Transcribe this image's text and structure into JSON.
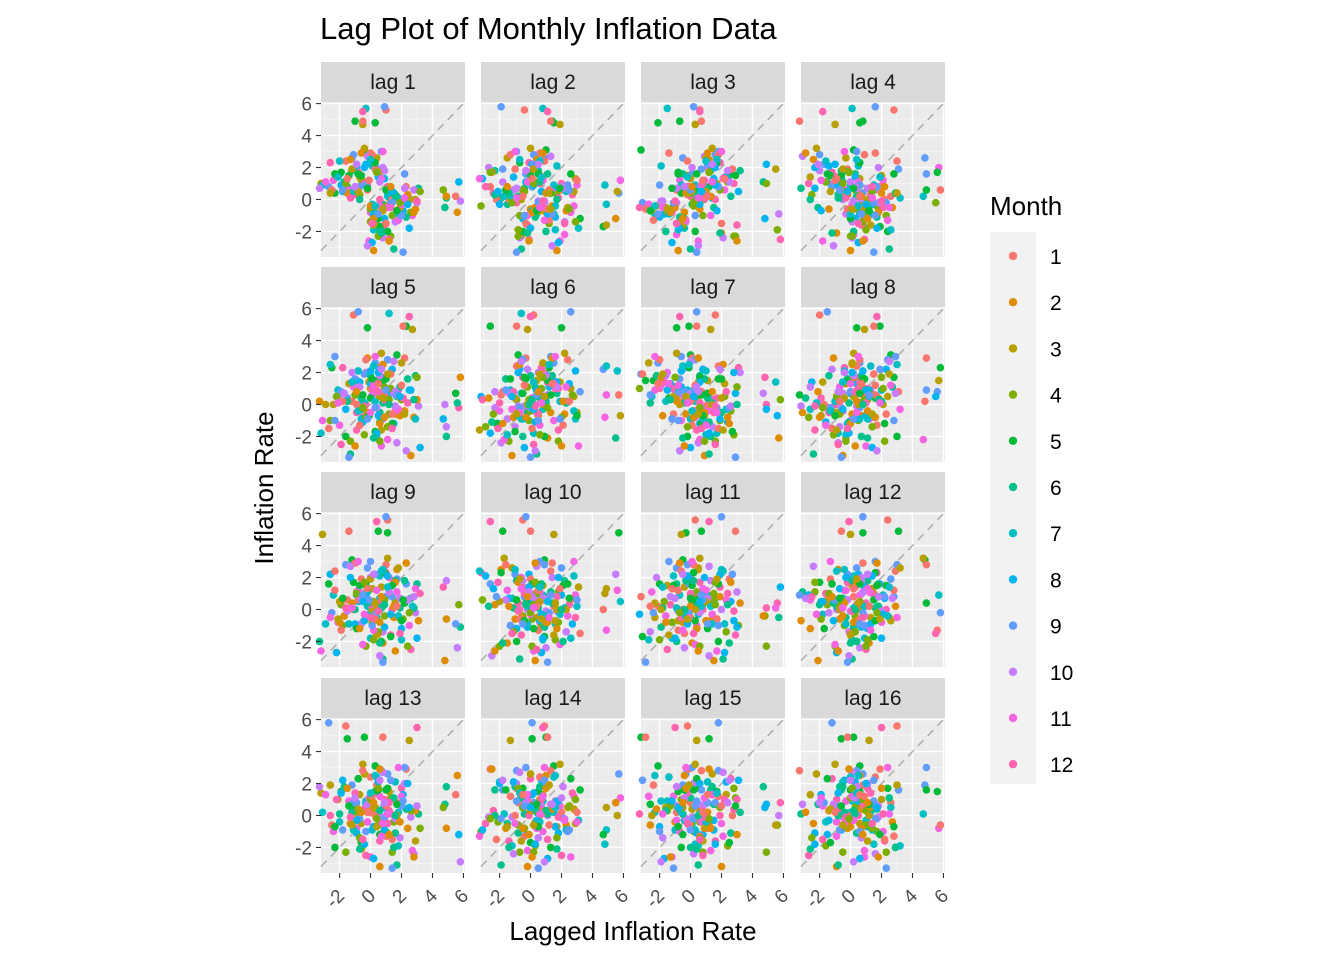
{
  "chart_data": {
    "type": "scatter",
    "title": "Lag Plot of Monthly Inflation Data",
    "xlabel": "Lagged Inflation Rate",
    "ylabel": "Inflation Rate",
    "xlim": [
      -3.2,
      6.1
    ],
    "ylim": [
      -3.6,
      6.1
    ],
    "x_ticks": [
      "-2",
      "0",
      "2",
      "4",
      "6"
    ],
    "y_ticks": [
      "6",
      "4",
      "2",
      "0",
      "-2"
    ],
    "grid": true,
    "reference_line": "y = x",
    "legend": {
      "title": "Month",
      "placement": "right",
      "entries": [
        "1",
        "2",
        "3",
        "4",
        "5",
        "6",
        "7",
        "8",
        "9",
        "10",
        "11",
        "12"
      ],
      "colors": [
        "#F8766D",
        "#DE8C00",
        "#B79F00",
        "#7CAE00",
        "#00BA38",
        "#00C08B",
        "#00BFC4",
        "#00B4F0",
        "#619CFF",
        "#C77CFF",
        "#F564E3",
        "#FF64B0"
      ]
    },
    "panels": [
      "lag 1",
      "lag 2",
      "lag 3",
      "lag 4",
      "lag 5",
      "lag 6",
      "lag 7",
      "lag 8",
      "lag 9",
      "lag 10",
      "lag 11",
      "lag 12",
      "lag 13",
      "lag 14",
      "lag 15",
      "lag 16"
    ],
    "series": [
      -0.6,
      1.2,
      0.1,
      -1.5,
      0.8,
      -0.3,
      5.7,
      1.1,
      0.4,
      -0.9,
      2.0,
      -0.2,
      0.6,
      -2.1,
      1.5,
      0.3,
      4.8,
      -0.5,
      0.9,
      -1.2,
      2.6,
      0.0,
      -0.8,
      1.7,
      0.2,
      -3.2,
      1.0,
      -0.4,
      3.1,
      0.7,
      -1.8,
      0.5,
      1.9,
      -0.1,
      -2.6,
      2.3,
      0.8,
      -0.7,
      1.4,
      -1.0,
      4.9,
      0.1,
      -0.3,
      2.2,
      1.6,
      -1.4,
      0.6,
      0.0,
      2.9,
      -0.6,
      1.3,
      -2.3,
      0.4,
      1.8,
      -0.9,
      0.7,
      3.0,
      -0.2,
      0.9,
      -1.6,
      2.4,
      0.3,
      -0.5,
      1.1,
      -2.0,
      1.6,
      0.2,
      -1.1,
      2.8,
      0.6,
      -0.4,
      1.0,
      5.6,
      -0.8,
      0.5,
      -1.9,
      1.7,
      0.1,
      2.1,
      -0.7,
      0.8,
      -2.4,
      1.2,
      0.4,
      -1.3,
      2.5,
      0.0,
      -0.6,
      1.5,
      -3.1,
      0.9,
      1.3,
      -0.2,
      2.7,
      -1.0,
      0.3,
      1.9,
      -0.5,
      4.7,
      0.6,
      -1.7,
      1.1,
      0.2,
      -0.9,
      2.2,
      0.7,
      -2.2,
      1.4,
      0.0,
      -0.4,
      3.2,
      0.5,
      -1.2,
      1.8,
      0.1,
      -2.7,
      0.8,
      2.0,
      -0.3,
      1.0,
      -1.5,
      0.4,
      2.6,
      -0.8,
      1.6,
      0.2,
      -1.9,
      0.9,
      5.8,
      -0.1,
      1.2,
      -2.5,
      0.6,
      1.7,
      -0.7,
      0.3,
      2.3,
      -1.1,
      0.5,
      1.4,
      -0.2,
      -2.9,
      1.1,
      0.8,
      -0.6,
      2.9,
      0.0,
      -1.4,
      1.5,
      0.4,
      -0.9,
      2.1,
      -3.3,
      0.7,
      1.3,
      -0.5,
      4.9,
      0.2,
      -1.6,
      1.0,
      0.6,
      -2.0,
      2.4,
      -0.3,
      0.9,
      1.8,
      -1.3,
      0.1,
      2.8,
      -0.8,
      0.5,
      -2.3,
      1.6,
      0.3,
      -0.4,
      2.0,
      -1.0,
      0.8,
      3.0,
      -0.1,
      1.2,
      -2.6,
      0.4,
      1.7,
      -0.7,
      0.0,
      2.5,
      -1.8,
      0.6,
      1.1,
      -0.5,
      5.5,
      0.2,
      -1.2,
      1.9,
      -0.2,
      0.7,
      -2.1,
      1.4,
      0.5,
      -0.9,
      2.2,
      0.1,
      -1.5,
      1.3,
      0.8,
      -0.6
    ]
  }
}
